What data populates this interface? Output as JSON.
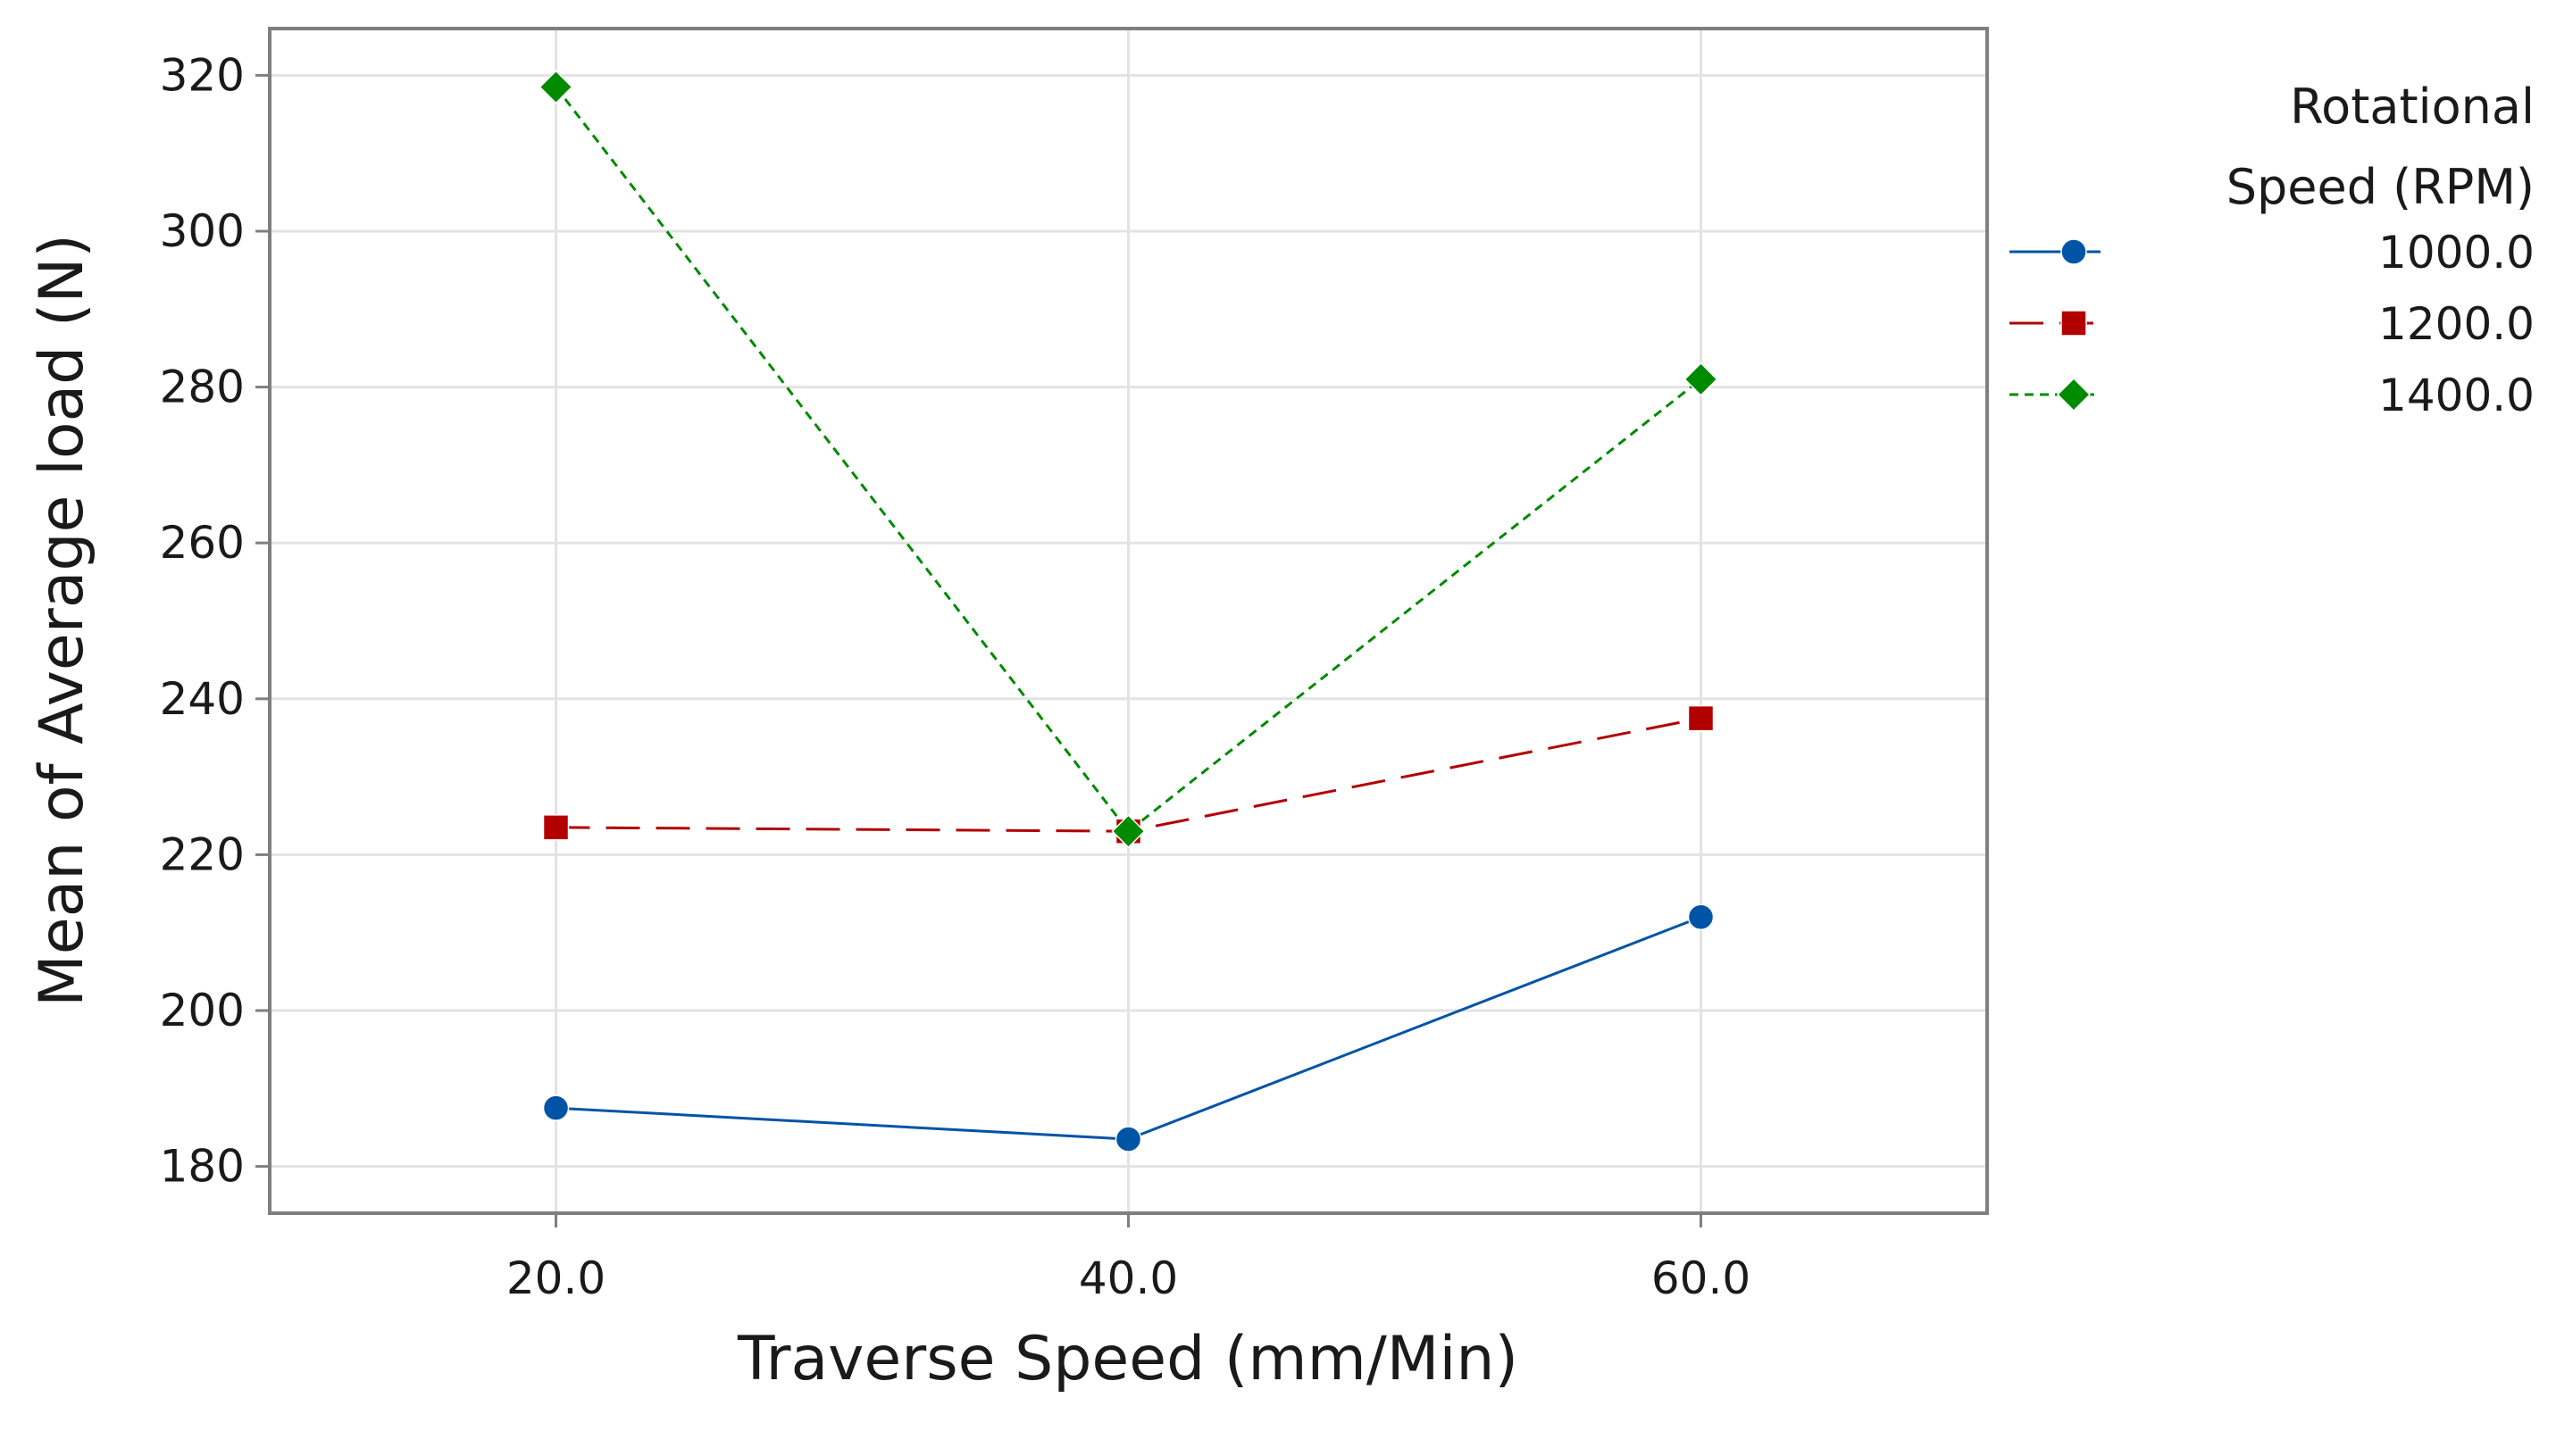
{
  "chart_data": {
    "type": "line",
    "title": "",
    "xlabel": "Traverse Speed (mm/Min)",
    "ylabel": "Mean of Average load (N)",
    "x": [
      20,
      40,
      60
    ],
    "x_tick_labels": [
      "20.0",
      "40.0",
      "60.0"
    ],
    "xlim": [
      10,
      70
    ],
    "ylim": [
      174,
      326
    ],
    "y_ticks": [
      180,
      200,
      220,
      240,
      260,
      280,
      300,
      320
    ],
    "y_tick_labels": [
      "180",
      "200",
      "220",
      "240",
      "260",
      "280",
      "300",
      "320"
    ],
    "grid": true,
    "legend": {
      "title_line1": "Rotational",
      "title_line2": "Speed (RPM)",
      "placement": "right"
    },
    "series": [
      {
        "name": "1000.0",
        "values": [
          187.5,
          183.5,
          212
        ],
        "color": "#0054a6",
        "marker": "circle",
        "dash": "solid"
      },
      {
        "name": "1200.0",
        "values": [
          223.5,
          223,
          237.5
        ],
        "color": "#b20000",
        "marker": "square",
        "dash": "long-dash"
      },
      {
        "name": "1400.0",
        "values": [
          318.5,
          223,
          281
        ],
        "color": "#008a00",
        "marker": "diamond",
        "dash": "short-dash"
      }
    ]
  }
}
